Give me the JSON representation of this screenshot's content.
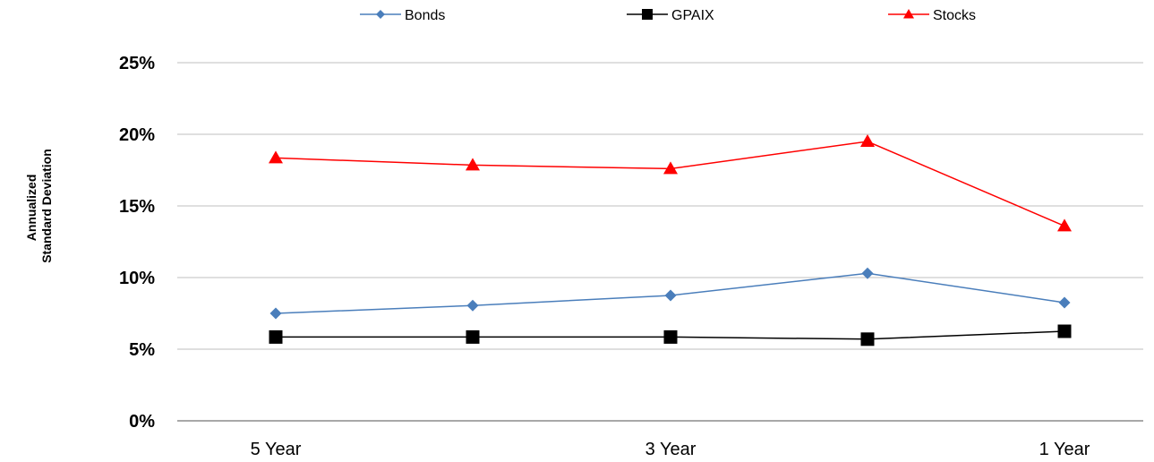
{
  "chart_data": {
    "type": "line",
    "title": "",
    "xlabel": "",
    "ylabel_lines": [
      "Annualized",
      "Standard Deviation"
    ],
    "categories": [
      "5 Year",
      "",
      "3 Year",
      "",
      "1 Year"
    ],
    "ylim": [
      0,
      25
    ],
    "yticks": [
      0,
      5,
      10,
      15,
      20,
      25
    ],
    "ytick_labels": [
      "0%",
      "5%",
      "10%",
      "15%",
      "20%",
      "25%"
    ],
    "grid": true,
    "legend_position": "top",
    "series": [
      {
        "name": "Bonds",
        "values": [
          7.5,
          8.05,
          8.75,
          10.3,
          8.25
        ],
        "color": "#4a7ebb",
        "marker": "diamond"
      },
      {
        "name": "GPAIX",
        "values": [
          5.85,
          5.85,
          5.85,
          5.7,
          6.25
        ],
        "color": "#000000",
        "marker": "square"
      },
      {
        "name": "Stocks",
        "values": [
          18.35,
          17.85,
          17.6,
          19.5,
          13.6
        ],
        "color": "#ff0000",
        "marker": "triangle"
      }
    ]
  }
}
